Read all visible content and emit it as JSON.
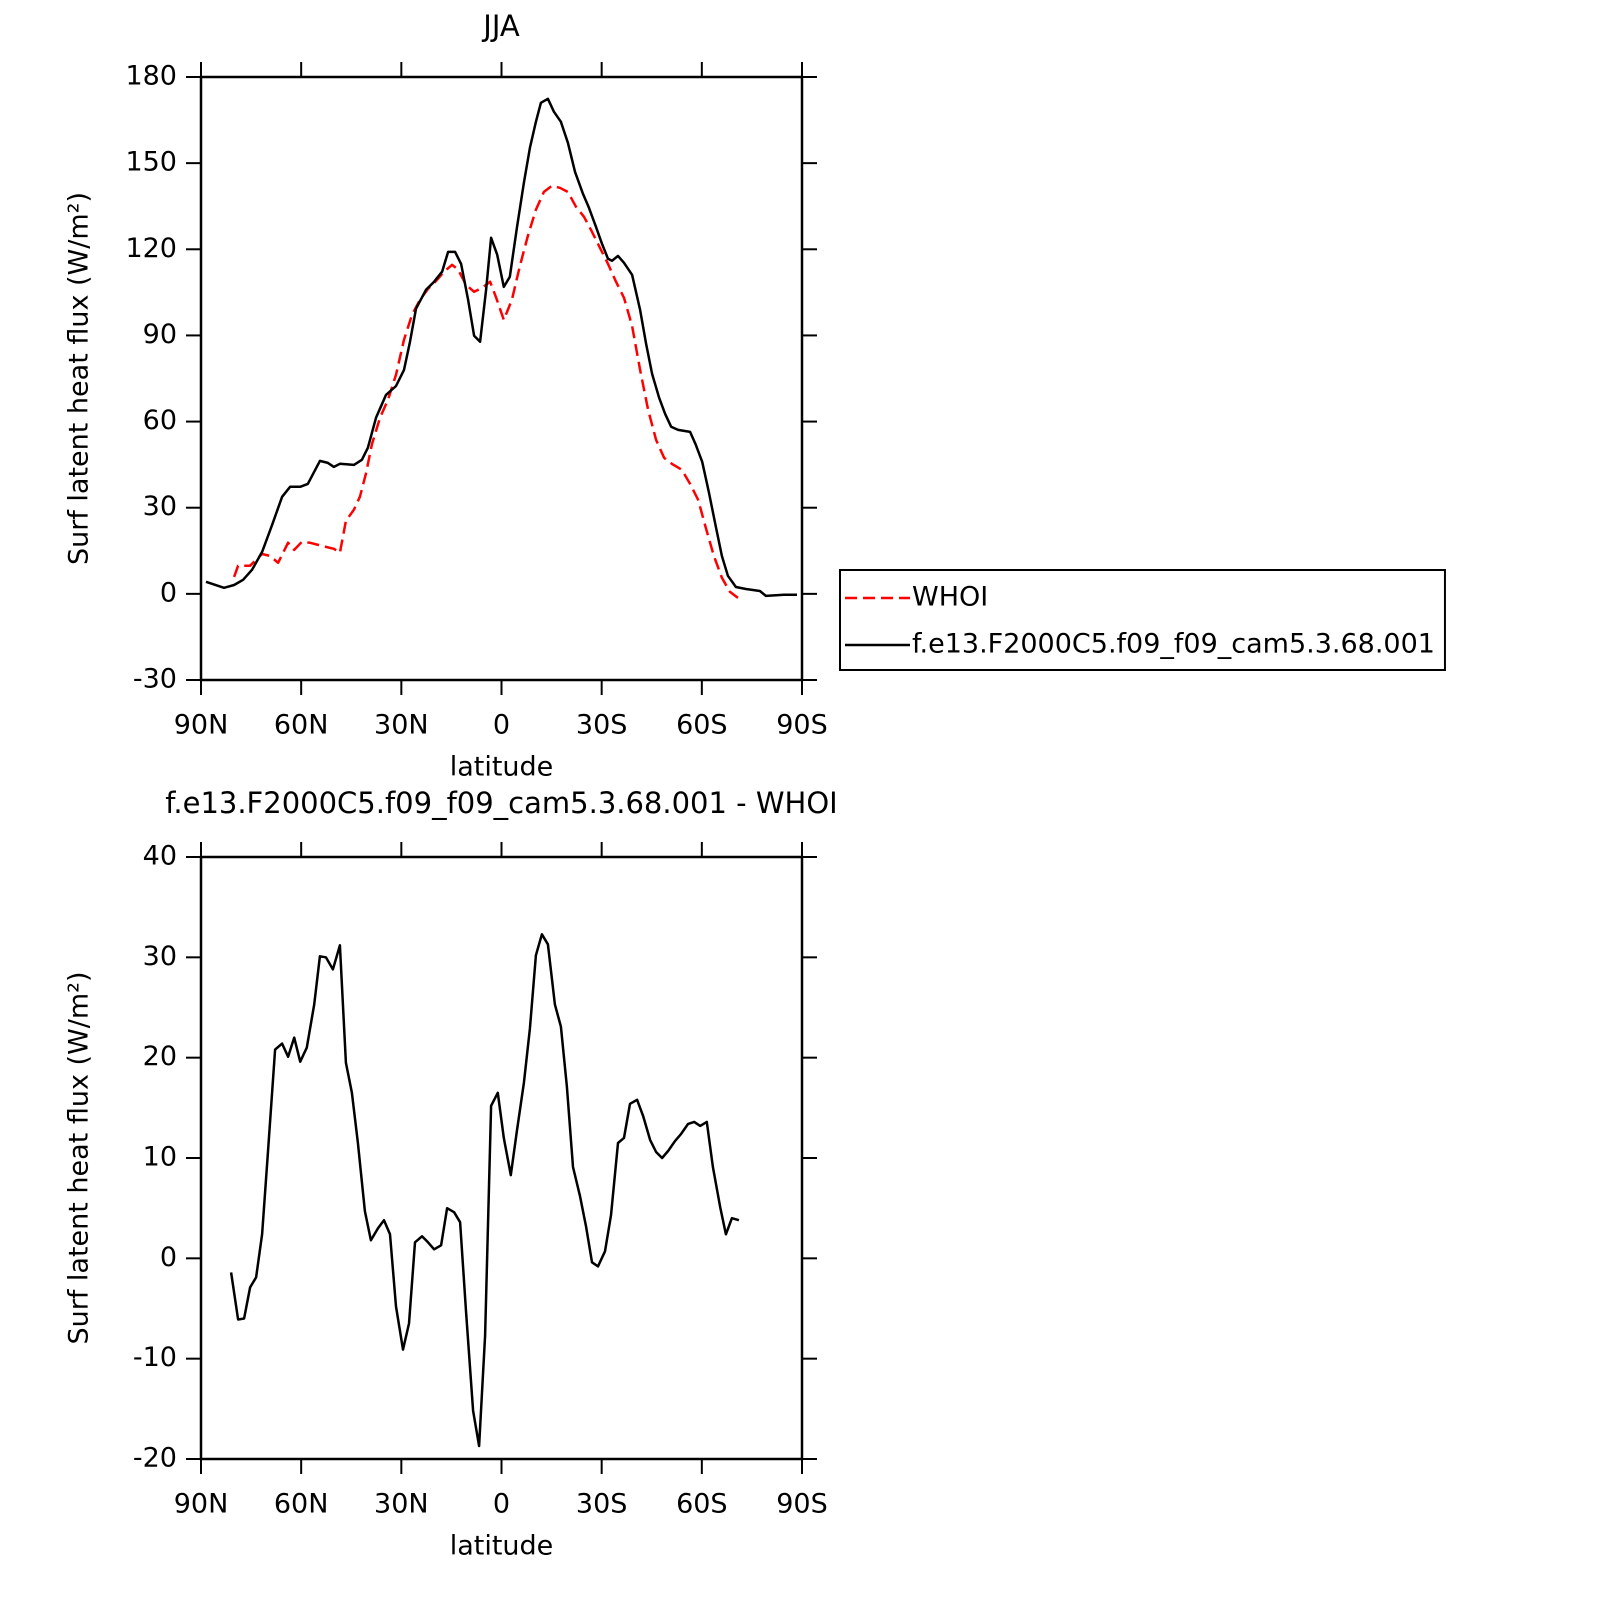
{
  "chart_data": [
    {
      "type": "line",
      "title": "JJA",
      "xlabel": "latitude",
      "ylabel": "Surf latent heat flux (W/m²)",
      "xlim": [
        90,
        -90
      ],
      "xticks": [
        {
          "value": 90,
          "label": "90N"
        },
        {
          "value": 60,
          "label": "60N"
        },
        {
          "value": 30,
          "label": "30N"
        },
        0,
        {
          "value": -30,
          "label": "30S"
        },
        {
          "value": -60,
          "label": "60S"
        },
        {
          "value": -90,
          "label": "90S"
        }
      ],
      "ylim": [
        -30,
        180
      ],
      "yticks": [
        -30,
        0,
        30,
        60,
        90,
        120,
        150,
        180
      ],
      "legend": "right",
      "series": [
        {
          "name": "WHOI",
          "color": "#ff0000",
          "style": "dashed",
          "x": [
            80.1,
            78.9,
            75.3,
            71.7,
            69.3,
            66.9,
            63.9,
            62.1,
            59.8,
            57.4,
            53.8,
            50.2,
            48.4,
            46.6,
            44.2,
            42.4,
            40.6,
            38.8,
            36.4,
            34,
            31.6,
            29.2,
            26.8,
            24.4,
            22,
            19.6,
            17.2,
            14.8,
            13,
            10.6,
            8.2,
            5.8,
            3.4,
            1.6,
            -0.7,
            -3.1,
            -5.5,
            -7.9,
            -10.3,
            -12.7,
            -15.1,
            -17.5,
            -19.9,
            -22.3,
            -24.7,
            -27.1,
            -29.5,
            -31.9,
            -34.3,
            -36.7,
            -39.1,
            -41.5,
            -43.9,
            -46.3,
            -48.7,
            -51,
            -54,
            -56.5,
            -58.9,
            -61.2,
            -63.6,
            -66,
            -68.4,
            -70.8
          ],
          "values": [
            5.9,
            9.8,
            9.8,
            13.9,
            13.2,
            10.8,
            17.8,
            15.3,
            18.1,
            17.8,
            16.7,
            15.7,
            14.3,
            25.4,
            29.3,
            33.8,
            41.8,
            52.2,
            61.3,
            67.6,
            76.3,
            88.5,
            97.2,
            102.4,
            106.2,
            109,
            112.2,
            114.6,
            112.9,
            107.6,
            105.2,
            106.6,
            108.7,
            103.1,
            95.4,
            102.4,
            114.2,
            124.7,
            133.8,
            140,
            142.1,
            141.4,
            140,
            134.8,
            131.3,
            126.1,
            120.5,
            114.9,
            108.7,
            103.1,
            93.3,
            78,
            64.1,
            53.6,
            47.4,
            45.3,
            43.2,
            38.3,
            32.7,
            23,
            13.2,
            5.6,
            0.7,
            -1.4
          ]
        },
        {
          "name": "f.e13.F2000C5.f09_f09_cam5.3.68.001",
          "color": "#000000",
          "style": "solid",
          "x": [
            88.5,
            83.1,
            80.1,
            77.4,
            74.7,
            71.7,
            68.7,
            65.7,
            63.3,
            60.3,
            58,
            54.4,
            52,
            50.2,
            48.4,
            44.2,
            41.8,
            40,
            37.6,
            34.6,
            31.6,
            29.2,
            27.4,
            25.6,
            22.6,
            20.2,
            17.8,
            16,
            13.9,
            12.1,
            10,
            8.2,
            6.4,
            4.6,
            3.1,
            1.3,
            -0.7,
            -2.5,
            -4.6,
            -6.7,
            -8.5,
            -10.3,
            -11.8,
            -13.9,
            -15.7,
            -17.8,
            -19.9,
            -22,
            -24.4,
            -26.2,
            -28.3,
            -30.1,
            -31.9,
            -33.1,
            -34.9,
            -36.7,
            -39.1,
            -41.5,
            -43.3,
            -45.1,
            -47.2,
            -49,
            -50.8,
            -52.9,
            -56.5,
            -58.2,
            -60.1,
            -62.1,
            -64.2,
            -66,
            -67.8,
            -70.2,
            -73.2,
            -77.4,
            -79.2,
            -84.6,
            -88.5
          ],
          "values": [
            4.2,
            2.1,
            3.1,
            4.9,
            8.4,
            14.6,
            24,
            33.8,
            37.3,
            37.3,
            38.3,
            46.3,
            45.6,
            44.2,
            45.3,
            44.9,
            46.7,
            50.9,
            61.3,
            69.3,
            72.4,
            78,
            87.8,
            99.3,
            105.9,
            108.7,
            112.2,
            119.1,
            119.1,
            114.9,
            102.4,
            89.9,
            87.8,
            105.9,
            124,
            118.1,
            106.9,
            110.4,
            127.5,
            143.2,
            155.3,
            164.4,
            171,
            172.4,
            167.9,
            164.4,
            157.1,
            147,
            139.3,
            134.4,
            127.8,
            121.9,
            116.7,
            116,
            117.7,
            115.3,
            111.1,
            98.9,
            87.1,
            76.6,
            68.3,
            62.7,
            58.2,
            57.1,
            56.4,
            51.9,
            46,
            35.5,
            23.3,
            13.2,
            6.3,
            2.4,
            1.7,
            1,
            -0.7,
            -0.3,
            -0.3
          ]
        }
      ]
    },
    {
      "type": "line",
      "title": "f.e13.F2000C5.f09_f09_cam5.3.68.001 - WHOI",
      "xlabel": "latitude",
      "ylabel": "Surf latent heat flux (W/m²)",
      "xlim": [
        90,
        -90
      ],
      "xticks": [
        {
          "value": 90,
          "label": "90N"
        },
        {
          "value": 60,
          "label": "60N"
        },
        {
          "value": 30,
          "label": "30N"
        },
        0,
        {
          "value": -30,
          "label": "30S"
        },
        {
          "value": -60,
          "label": "60S"
        },
        {
          "value": -90,
          "label": "90S"
        }
      ],
      "ylim": [
        -20,
        40
      ],
      "yticks": [
        -20,
        -10,
        0,
        10,
        20,
        30,
        40
      ],
      "series": [
        {
          "color": "#000000",
          "style": "solid",
          "x": [
            81,
            78.9,
            77.1,
            75.3,
            73.5,
            71.7,
            69.9,
            67.8,
            65.7,
            63.9,
            62.1,
            60.3,
            58.3,
            56.1,
            54.4,
            52.6,
            50.5,
            48.4,
            46.6,
            44.8,
            43,
            40.9,
            39.1,
            37,
            35.2,
            33.4,
            31.6,
            29.5,
            27.7,
            25.9,
            23.8,
            22,
            20.2,
            18.1,
            16.3,
            14.2,
            12.4,
            10.6,
            8.5,
            6.7,
            4.9,
            3.1,
            1.1,
            -0.7,
            -2.8,
            -4.6,
            -6.7,
            -8.5,
            -10.3,
            -12.1,
            -13.9,
            -16,
            -17.8,
            -19.6,
            -21.4,
            -23.5,
            -25.3,
            -27.1,
            -28.9,
            -31,
            -32.8,
            -34.9,
            -36.7,
            -38.5,
            -40.6,
            -42.4,
            -44.5,
            -46.3,
            -48.1,
            -49.9,
            -52,
            -53.8,
            -55.9,
            -57.7,
            -59.5,
            -61.5,
            -63.3,
            -65.5,
            -67.2,
            -69,
            -71.1
          ],
          "values": [
            -1.4,
            -6.1,
            -6,
            -2.9,
            -1.9,
            2.4,
            10.8,
            20.8,
            21.4,
            20.1,
            22,
            19.6,
            21,
            25.3,
            30.1,
            30,
            28.8,
            31.2,
            19.5,
            16.5,
            11.5,
            4.7,
            1.8,
            3,
            3.8,
            2.4,
            -4.8,
            -9.1,
            -6.5,
            1.6,
            2.2,
            1.6,
            0.9,
            1.3,
            5,
            4.6,
            3.6,
            -5.4,
            -15.2,
            -18.7,
            -7.7,
            15.2,
            16.5,
            12,
            8.3,
            12.7,
            17.5,
            22.9,
            30.2,
            32.3,
            31.3,
            25.3,
            23.1,
            17.1,
            9.1,
            6.2,
            3.2,
            -0.4,
            -0.8,
            0.7,
            4.3,
            11.5,
            12,
            15.4,
            15.8,
            14.2,
            11.8,
            10.6,
            10,
            10.7,
            11.7,
            12.4,
            13.4,
            13.6,
            13.2,
            13.6,
            9.1,
            5.1,
            2.4,
            4,
            3.8
          ]
        }
      ]
    }
  ]
}
